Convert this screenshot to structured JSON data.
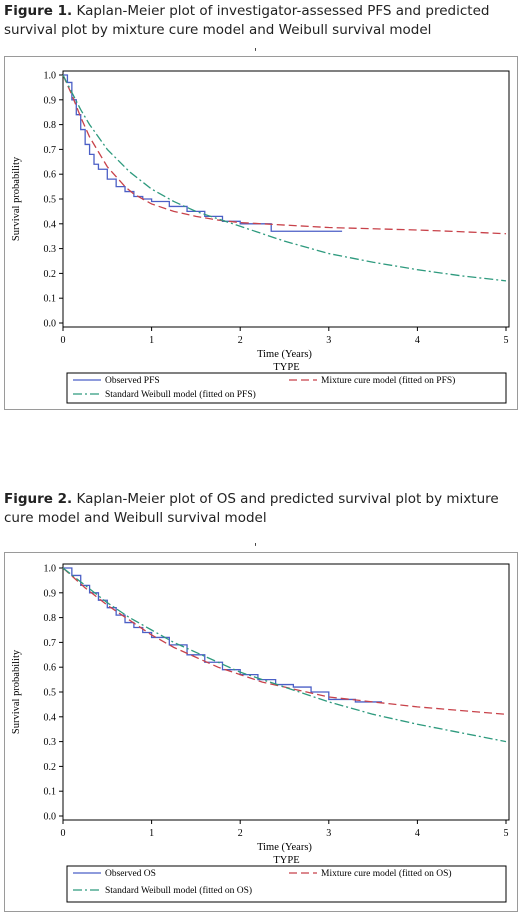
{
  "figure1": {
    "caption_label": "Figure 1.",
    "caption_text": " Kaplan-Meier plot of investigator-assessed PFS and predicted survival plot by mixture cure model and Weibull survival model",
    "tick_mark": "'"
  },
  "figure2": {
    "caption_label": "Figure 2.",
    "caption_text": " Kaplan-Meier plot of OS and predicted survival plot by mixture cure model and Weibull survival model",
    "tick_mark": "'"
  },
  "chart_data": [
    {
      "type": "line",
      "title": "",
      "xlabel": "Time (Years)",
      "ylabel": "Survival probability",
      "xlim": [
        0,
        5
      ],
      "ylim": [
        0,
        1
      ],
      "x_ticks": [
        "0",
        "1",
        "2",
        "3",
        "4",
        "5"
      ],
      "y_ticks": [
        "0.0",
        "0.1",
        "0.2",
        "0.3",
        "0.4",
        "0.5",
        "0.6",
        "0.7",
        "0.8",
        "0.9",
        "1.0"
      ],
      "legend_title": "TYPE",
      "legend_position": "bottom",
      "series": [
        {
          "name": "Observed PFS",
          "color": "#4b5fc6",
          "style": "step",
          "x": [
            0,
            0.05,
            0.1,
            0.15,
            0.2,
            0.25,
            0.3,
            0.35,
            0.4,
            0.5,
            0.6,
            0.7,
            0.8,
            0.9,
            1.0,
            1.2,
            1.4,
            1.6,
            1.8,
            2.0,
            2.2,
            2.35,
            2.5,
            2.8,
            3.15
          ],
          "y": [
            1.0,
            0.97,
            0.9,
            0.84,
            0.78,
            0.72,
            0.68,
            0.64,
            0.62,
            0.58,
            0.55,
            0.53,
            0.51,
            0.5,
            0.49,
            0.47,
            0.45,
            0.43,
            0.41,
            0.4,
            0.4,
            0.37,
            0.37,
            0.37,
            0.37
          ]
        },
        {
          "name": "Mixture cure model (fitted on PFS)",
          "color": "#c8424a",
          "style": "dash",
          "x": [
            0,
            0.1,
            0.2,
            0.3,
            0.4,
            0.5,
            0.6,
            0.7,
            0.8,
            0.9,
            1.0,
            1.25,
            1.5,
            1.75,
            2.0,
            2.5,
            3.0,
            3.5,
            4.0,
            4.5,
            5.0
          ],
          "y": [
            1.0,
            0.92,
            0.83,
            0.75,
            0.69,
            0.63,
            0.59,
            0.55,
            0.52,
            0.5,
            0.48,
            0.45,
            0.43,
            0.415,
            0.405,
            0.395,
            0.385,
            0.38,
            0.375,
            0.368,
            0.36
          ]
        },
        {
          "name": "Standard Weibull model (fitted on PFS)",
          "color": "#2e9a7e",
          "style": "dashdot",
          "x": [
            0,
            0.1,
            0.2,
            0.3,
            0.4,
            0.5,
            0.75,
            1.0,
            1.25,
            1.5,
            1.75,
            2.0,
            2.5,
            3.0,
            3.5,
            4.0,
            4.5,
            5.0
          ],
          "y": [
            1.0,
            0.93,
            0.86,
            0.8,
            0.75,
            0.7,
            0.61,
            0.54,
            0.49,
            0.45,
            0.42,
            0.39,
            0.33,
            0.28,
            0.245,
            0.215,
            0.19,
            0.17
          ]
        }
      ]
    },
    {
      "type": "line",
      "title": "",
      "xlabel": "Time (Years)",
      "ylabel": "Survival probability",
      "xlim": [
        0,
        5
      ],
      "ylim": [
        0,
        1
      ],
      "x_ticks": [
        "0",
        "1",
        "2",
        "3",
        "4",
        "5"
      ],
      "y_ticks": [
        "0.0",
        "0.1",
        "0.2",
        "0.3",
        "0.4",
        "0.5",
        "0.6",
        "0.7",
        "0.8",
        "0.9",
        "1.0"
      ],
      "legend_title": "TYPE",
      "legend_position": "bottom",
      "series": [
        {
          "name": "Observed OS",
          "color": "#4b5fc6",
          "style": "step",
          "x": [
            0,
            0.1,
            0.2,
            0.3,
            0.4,
            0.5,
            0.6,
            0.7,
            0.8,
            0.9,
            1.0,
            1.2,
            1.4,
            1.6,
            1.8,
            2.0,
            2.2,
            2.4,
            2.6,
            2.8,
            3.0,
            3.3,
            3.6
          ],
          "y": [
            1.0,
            0.97,
            0.93,
            0.9,
            0.87,
            0.84,
            0.81,
            0.78,
            0.76,
            0.74,
            0.72,
            0.69,
            0.65,
            0.62,
            0.59,
            0.57,
            0.55,
            0.53,
            0.52,
            0.5,
            0.47,
            0.46,
            0.46
          ]
        },
        {
          "name": "Mixture cure model (fitted on OS)",
          "color": "#c8424a",
          "style": "dash",
          "x": [
            0,
            0.25,
            0.5,
            0.75,
            1.0,
            1.25,
            1.5,
            1.75,
            2.0,
            2.25,
            2.5,
            2.75,
            3.0,
            3.5,
            4.0,
            4.5,
            5.0
          ],
          "y": [
            1.0,
            0.92,
            0.85,
            0.79,
            0.73,
            0.68,
            0.64,
            0.6,
            0.57,
            0.54,
            0.52,
            0.5,
            0.48,
            0.46,
            0.44,
            0.425,
            0.41
          ]
        },
        {
          "name": "Standard Weibull model (fitted on OS)",
          "color": "#2e9a7e",
          "style": "dashdot",
          "x": [
            0,
            0.25,
            0.5,
            0.75,
            1.0,
            1.25,
            1.5,
            1.75,
            2.0,
            2.25,
            2.5,
            2.75,
            3.0,
            3.5,
            4.0,
            4.5,
            5.0
          ],
          "y": [
            1.0,
            0.93,
            0.86,
            0.8,
            0.75,
            0.7,
            0.66,
            0.62,
            0.58,
            0.55,
            0.52,
            0.49,
            0.46,
            0.41,
            0.37,
            0.335,
            0.3
          ]
        }
      ]
    }
  ]
}
